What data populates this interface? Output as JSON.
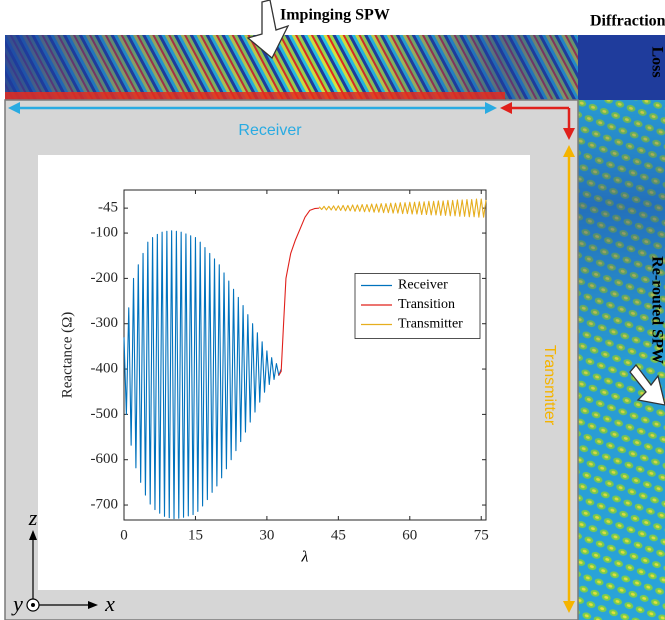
{
  "chart_data": {
    "type": "line",
    "xlabel": "λ",
    "ylabel": "Reactance (Ω)",
    "xlim": [
      0,
      76
    ],
    "ylim": [
      -733,
      -5
    ],
    "xticks": [
      0,
      15,
      30,
      45,
      60,
      75
    ],
    "yticks": [
      -45,
      -100,
      -200,
      -300,
      -400,
      -500,
      -600,
      -700
    ],
    "legend": "center-right",
    "series": [
      {
        "name": "Receiver",
        "color": "#0072bd",
        "x": [
          0,
          0.5,
          1,
          1.5,
          2,
          2.5,
          3,
          3.5,
          4,
          4.5,
          5,
          5.5,
          6,
          6.5,
          7,
          7.5,
          8,
          8.5,
          9,
          9.5,
          10,
          10.5,
          11,
          11.5,
          12,
          12.5,
          13,
          13.5,
          14,
          14.5,
          15,
          15.5,
          16,
          16.5,
          17,
          17.5,
          18,
          18.5,
          19,
          19.5,
          20,
          20.5,
          21,
          21.5,
          22,
          22.5,
          23,
          23.5,
          24,
          24.5,
          25,
          25.5,
          26,
          26.5,
          27,
          27.5,
          28,
          28.5,
          29,
          29.5,
          30,
          30.5,
          31,
          31.5,
          32,
          32.5,
          33
        ],
        "values": [
          -330,
          -500,
          -265,
          -568,
          -200,
          -618,
          -170,
          -650,
          -145,
          -678,
          -120,
          -698,
          -110,
          -710,
          -103,
          -718,
          -98,
          -725,
          -96,
          -728,
          -95,
          -730,
          -96,
          -729,
          -98,
          -727,
          -102,
          -724,
          -106,
          -721,
          -110,
          -714,
          -120,
          -702,
          -132,
          -688,
          -145,
          -672,
          -157,
          -658,
          -170,
          -640,
          -188,
          -620,
          -206,
          -600,
          -224,
          -580,
          -242,
          -560,
          -260,
          -539,
          -280,
          -517,
          -300,
          -495,
          -320,
          -473,
          -340,
          -451,
          -360,
          -434,
          -375,
          -423,
          -388,
          -414,
          -400
        ]
      },
      {
        "name": "Transition",
        "color": "#e0201b",
        "x": [
          32.5,
          33,
          33.5,
          34,
          35,
          36,
          37,
          38,
          39,
          40,
          41
        ],
        "values": [
          -414,
          -405,
          -300,
          -200,
          -145,
          -115,
          -90,
          -65,
          -50,
          -46,
          -45
        ]
      },
      {
        "name": "Transmitter",
        "color": "#e6ae1e",
        "x": [
          41,
          41.5,
          42,
          42.5,
          43,
          43.5,
          44,
          44.5,
          45,
          45.5,
          46,
          46.5,
          47,
          47.5,
          48,
          48.5,
          49,
          49.5,
          50,
          50.5,
          51,
          51.5,
          52,
          52.5,
          53,
          53.5,
          54,
          54.5,
          55,
          55.5,
          56,
          56.5,
          57,
          57.5,
          58,
          58.5,
          59,
          59.5,
          60,
          60.5,
          61,
          61.5,
          62,
          62.5,
          63,
          63.5,
          64,
          64.5,
          65,
          65.5,
          66,
          66.5,
          67,
          67.5,
          68,
          68.5,
          69,
          69.5,
          70,
          70.5,
          71,
          71.5,
          72,
          72.5,
          73,
          73.5,
          74,
          74.5,
          75,
          75.5,
          76
        ],
        "values": [
          -42,
          -48,
          -41,
          -49,
          -41,
          -49,
          -40,
          -50,
          -40,
          -50,
          -39,
          -51,
          -39,
          -51,
          -38,
          -52,
          -38,
          -52,
          -37,
          -53,
          -37,
          -53,
          -36,
          -54,
          -36,
          -54,
          -35,
          -55,
          -35,
          -55,
          -34,
          -56,
          -34,
          -56,
          -33,
          -57,
          -33,
          -57,
          -32,
          -58,
          -32,
          -58,
          -31,
          -59,
          -31,
          -59,
          -30,
          -60,
          -30,
          -60,
          -29,
          -61,
          -29,
          -61,
          -28,
          -62,
          -28,
          -62,
          -27,
          -63,
          -27,
          -63,
          -26,
          -64,
          -26,
          -64,
          -25,
          -65,
          -25,
          -65,
          -27
        ]
      }
    ],
    "annotations": {
      "impinging": "Impinging SPW",
      "diffraction": "Diffraction",
      "loss": "Loss",
      "rerouted": "Re-routed SPW",
      "receiver": "Receiver",
      "transmitter": "Transmitter",
      "axis_z": "z",
      "axis_y": "y",
      "axis_x": "x"
    }
  }
}
